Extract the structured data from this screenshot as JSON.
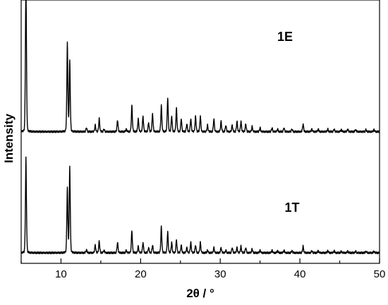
{
  "chart_data": {
    "type": "line",
    "title": "",
    "xlabel": "2θ / °",
    "ylabel": "Intensity",
    "xlim": [
      5,
      50
    ],
    "ylim": [
      0,
      100
    ],
    "x_ticks": [
      10,
      20,
      30,
      40,
      50
    ],
    "y_ticks_shown": false,
    "grid": false,
    "legend": "none",
    "series": [
      {
        "name": "1E",
        "baseline": 50,
        "peaks": [
          [
            5.6,
            60
          ],
          [
            10.8,
            34
          ],
          [
            11.1,
            27
          ],
          [
            13.2,
            1.5
          ],
          [
            14.3,
            2.5
          ],
          [
            14.8,
            5
          ],
          [
            15.4,
            1
          ],
          [
            17.1,
            4.5
          ],
          [
            18.2,
            1
          ],
          [
            18.9,
            10
          ],
          [
            19.7,
            5
          ],
          [
            20.3,
            6
          ],
          [
            21.0,
            3.5
          ],
          [
            21.5,
            7
          ],
          [
            22.6,
            10
          ],
          [
            23.4,
            13
          ],
          [
            23.9,
            6
          ],
          [
            24.5,
            9
          ],
          [
            25.1,
            5
          ],
          [
            25.8,
            3
          ],
          [
            26.3,
            5
          ],
          [
            26.9,
            6
          ],
          [
            27.5,
            6
          ],
          [
            28.4,
            2.5
          ],
          [
            29.2,
            5
          ],
          [
            30.1,
            4
          ],
          [
            30.7,
            2.5
          ],
          [
            31.5,
            2.5
          ],
          [
            32.1,
            4
          ],
          [
            32.6,
            4
          ],
          [
            33.2,
            3
          ],
          [
            34.0,
            2
          ],
          [
            35.0,
            1.5
          ],
          [
            36.5,
            1.5
          ],
          [
            37.2,
            1
          ],
          [
            38.0,
            1.5
          ],
          [
            39.0,
            1
          ],
          [
            40.4,
            3
          ],
          [
            41.5,
            1
          ],
          [
            42.3,
            1
          ],
          [
            43.5,
            1
          ],
          [
            44.3,
            1
          ],
          [
            45.2,
            0.8
          ],
          [
            46.0,
            1
          ],
          [
            47.0,
            0.8
          ],
          [
            48.3,
            0.8
          ],
          [
            49.3,
            0.8
          ]
        ]
      },
      {
        "name": "1T",
        "baseline": 4,
        "peaks": [
          [
            5.6,
            36
          ],
          [
            10.8,
            25
          ],
          [
            11.1,
            33
          ],
          [
            13.2,
            1.2
          ],
          [
            14.3,
            3
          ],
          [
            14.8,
            4.5
          ],
          [
            15.4,
            1
          ],
          [
            17.1,
            4
          ],
          [
            18.2,
            1
          ],
          [
            18.9,
            8.5
          ],
          [
            19.7,
            2.5
          ],
          [
            20.3,
            4
          ],
          [
            21.0,
            2
          ],
          [
            21.5,
            3
          ],
          [
            22.6,
            10
          ],
          [
            23.4,
            8
          ],
          [
            23.9,
            4
          ],
          [
            24.5,
            5
          ],
          [
            25.1,
            3
          ],
          [
            25.8,
            2
          ],
          [
            26.3,
            4
          ],
          [
            26.9,
            3
          ],
          [
            27.5,
            4
          ],
          [
            28.4,
            1
          ],
          [
            29.2,
            2
          ],
          [
            30.1,
            2
          ],
          [
            30.7,
            1
          ],
          [
            31.5,
            2
          ],
          [
            32.1,
            2
          ],
          [
            32.6,
            2.5
          ],
          [
            33.2,
            2
          ],
          [
            34.0,
            1.5
          ],
          [
            35.0,
            1
          ],
          [
            36.5,
            1
          ],
          [
            37.2,
            0.8
          ],
          [
            38.0,
            1
          ],
          [
            39.0,
            0.8
          ],
          [
            40.4,
            2.5
          ],
          [
            41.5,
            0.8
          ],
          [
            42.3,
            0.8
          ],
          [
            43.5,
            0.8
          ],
          [
            44.3,
            0.8
          ],
          [
            45.2,
            0.6
          ],
          [
            46.0,
            0.6
          ],
          [
            47.0,
            0.6
          ],
          [
            48.3,
            0.6
          ],
          [
            49.3,
            0.6
          ]
        ]
      }
    ]
  }
}
